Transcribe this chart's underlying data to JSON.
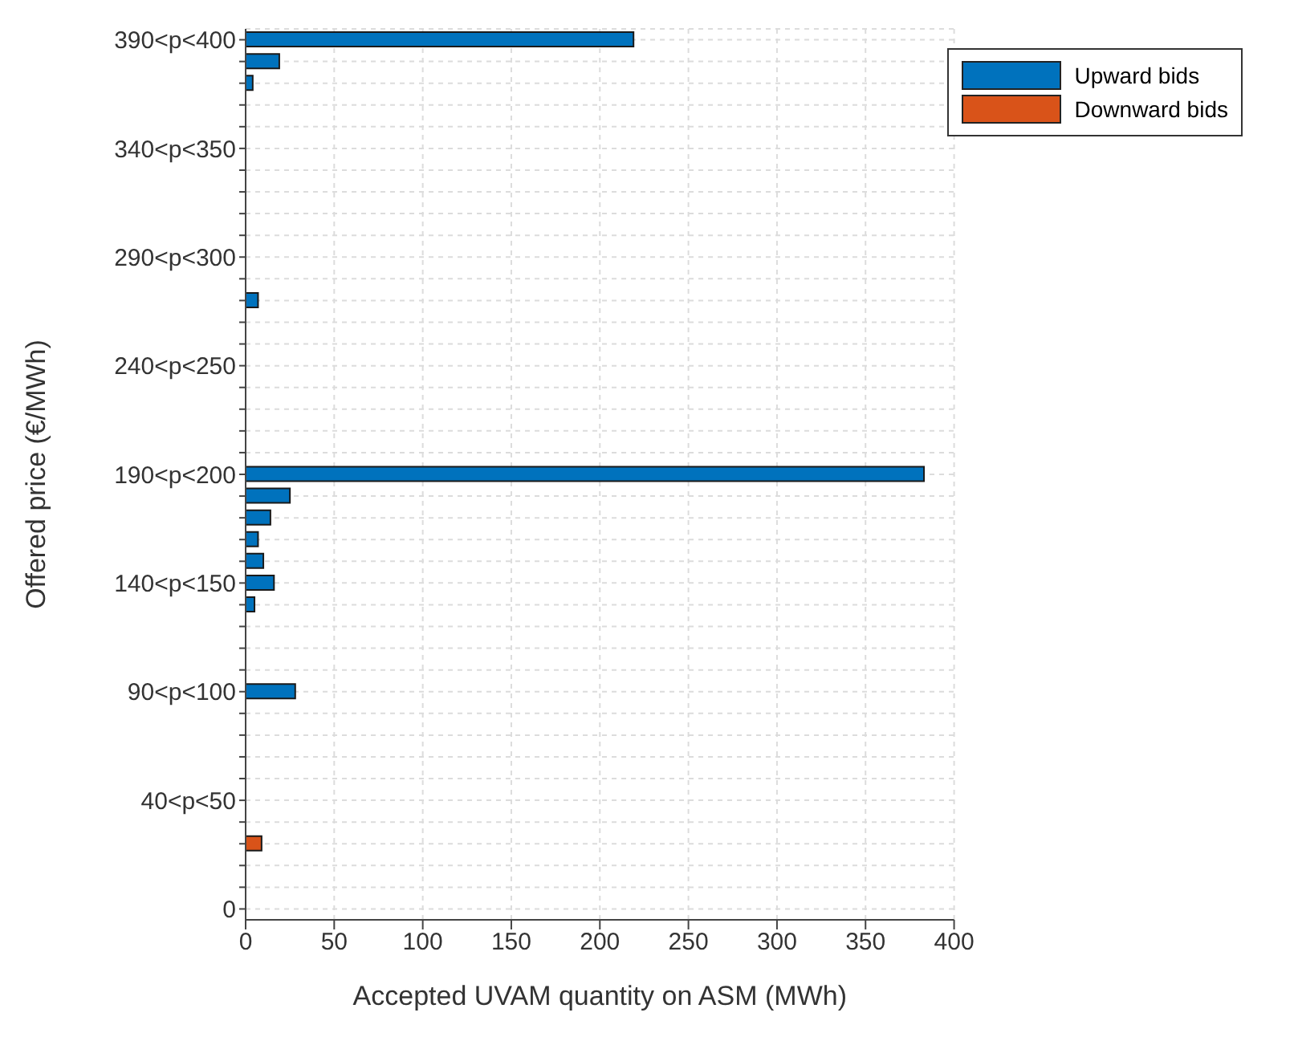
{
  "chart_data": {
    "type": "bar",
    "orientation": "horizontal",
    "stacked": true,
    "xlabel": "Accepted UVAM quantity on ASM (MWh)",
    "ylabel": "Offered price (€/MWh)",
    "categories": [
      "390<p<400",
      null,
      null,
      null,
      null,
      "340<p<350",
      null,
      null,
      null,
      null,
      "290<p<300",
      null,
      null,
      null,
      null,
      "240<p<250",
      null,
      null,
      null,
      null,
      "190<p<200",
      null,
      null,
      null,
      null,
      "140<p<150",
      null,
      null,
      null,
      null,
      "90<p<100",
      null,
      null,
      null,
      null,
      "40<p<50",
      null,
      null,
      null,
      null,
      "0"
    ],
    "series": [
      {
        "name": "Upward bids",
        "color": "#0072bd",
        "values": [
          219,
          19,
          4,
          null,
          null,
          null,
          null,
          null,
          null,
          null,
          null,
          null,
          7,
          null,
          null,
          null,
          null,
          null,
          null,
          null,
          383,
          25,
          14,
          7,
          10,
          16,
          5,
          null,
          null,
          null,
          28,
          null,
          null,
          null,
          null,
          null,
          null,
          null,
          null,
          null,
          null
        ]
      },
      {
        "name": "Downward bids",
        "color": "#d95319",
        "values": [
          null,
          null,
          null,
          null,
          null,
          null,
          null,
          null,
          null,
          null,
          null,
          null,
          null,
          null,
          null,
          null,
          null,
          null,
          null,
          null,
          null,
          null,
          null,
          null,
          null,
          null,
          null,
          null,
          null,
          null,
          null,
          null,
          null,
          null,
          null,
          null,
          null,
          9,
          null,
          null,
          null
        ]
      }
    ],
    "xlim": [
      0,
      400
    ],
    "xticks": [
      0,
      50,
      100,
      150,
      200,
      250,
      300,
      350,
      400
    ],
    "grid": true,
    "legend": "top right"
  }
}
